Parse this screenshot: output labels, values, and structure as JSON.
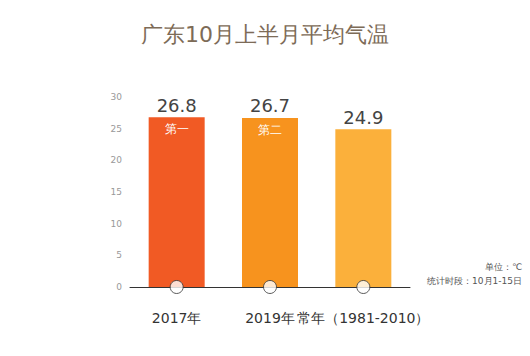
{
  "chart_data": {
    "type": "bar",
    "title": "广东10月上半月平均气温",
    "categories": [
      "2017年",
      "2019年",
      "常年（1981-2010）"
    ],
    "values": [
      26.8,
      26.7,
      24.9
    ],
    "colors": [
      "#f15a24",
      "#f7931e",
      "#fbb03b"
    ],
    "rank_labels": [
      "第一",
      "第二",
      null
    ],
    "annotations": [
      "单位：℃",
      "统计时段：10月1-15日"
    ],
    "ylim": [
      0,
      30
    ],
    "yticks": [
      0,
      5,
      10,
      15,
      20,
      25,
      30
    ],
    "grid": false,
    "data_labels": true
  }
}
